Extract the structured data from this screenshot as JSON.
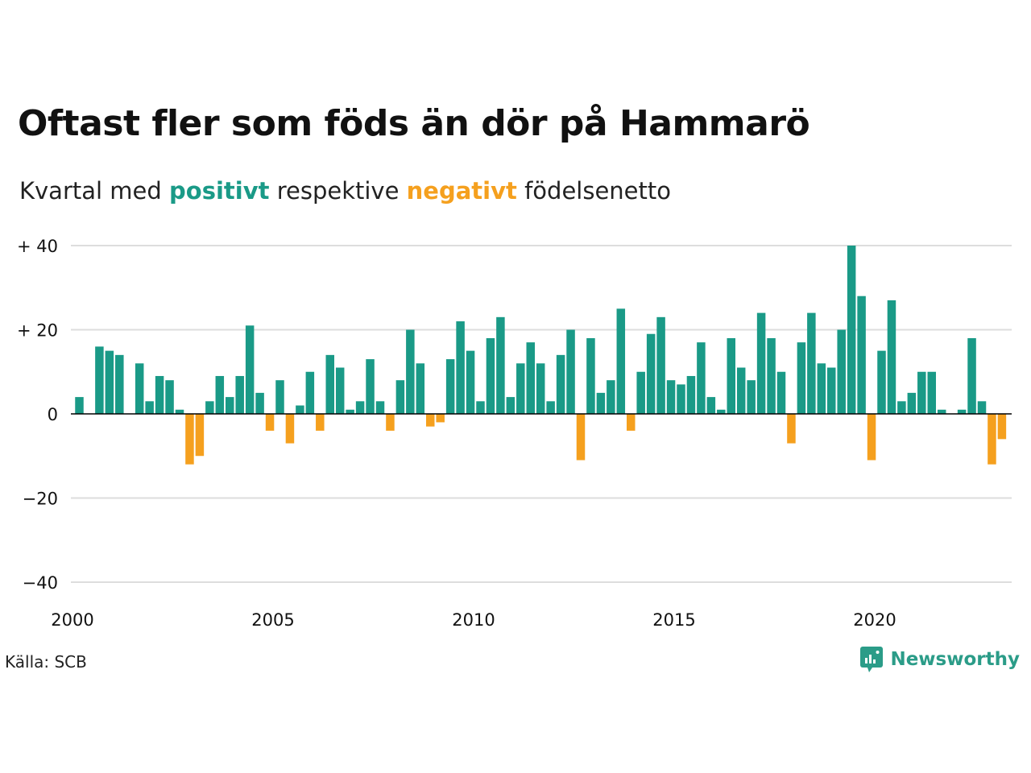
{
  "title": "Oftast fler som föds än dör på Hammarö",
  "subtitle": {
    "prefix": "Kvartal med",
    "positive_word": "positivt",
    "middle": "respektive",
    "negative_word": "negativt",
    "suffix": "födelsenetto"
  },
  "source": "Källa: SCB",
  "brand": {
    "name": "Newsworthy",
    "icon": "newsworthy-logo-icon"
  },
  "colors": {
    "positive": "#1a9a87",
    "negative": "#f5a01e",
    "grid": "#dddddd",
    "axis": "#000000"
  },
  "chart_data": {
    "type": "bar",
    "x_start": "2000 Q1",
    "y_ticks": [
      {
        "value": 40,
        "label": "+ 40"
      },
      {
        "value": 20,
        "label": "+ 20"
      },
      {
        "value": 0,
        "label": "0"
      },
      {
        "value": -20,
        "label": "−20"
      },
      {
        "value": -40,
        "label": "−40"
      }
    ],
    "x_ticks": [
      {
        "label": "2000",
        "index": 0
      },
      {
        "label": "2005",
        "index": 20
      },
      {
        "label": "2010",
        "index": 40
      },
      {
        "label": "2015",
        "index": 60
      },
      {
        "label": "2020",
        "index": 80
      }
    ],
    "ylim": [
      -40,
      40
    ],
    "grid": true,
    "values": [
      4,
      0,
      16,
      15,
      14,
      0,
      12,
      3,
      9,
      8,
      1,
      -12,
      -10,
      3,
      9,
      4,
      9,
      21,
      5,
      -4,
      8,
      -7,
      2,
      10,
      -4,
      14,
      11,
      1,
      3,
      13,
      3,
      -4,
      8,
      20,
      12,
      -3,
      -2,
      13,
      22,
      15,
      3,
      18,
      23,
      4,
      12,
      17,
      12,
      3,
      14,
      20,
      -11,
      18,
      5,
      8,
      25,
      -4,
      10,
      19,
      23,
      8,
      7,
      9,
      17,
      4,
      1,
      18,
      11,
      8,
      24,
      18,
      10,
      -7,
      17,
      24,
      12,
      11,
      20,
      40,
      28,
      -11,
      15,
      27,
      3,
      5,
      10,
      10,
      1,
      0,
      1,
      18,
      3,
      -12,
      -6
    ]
  }
}
